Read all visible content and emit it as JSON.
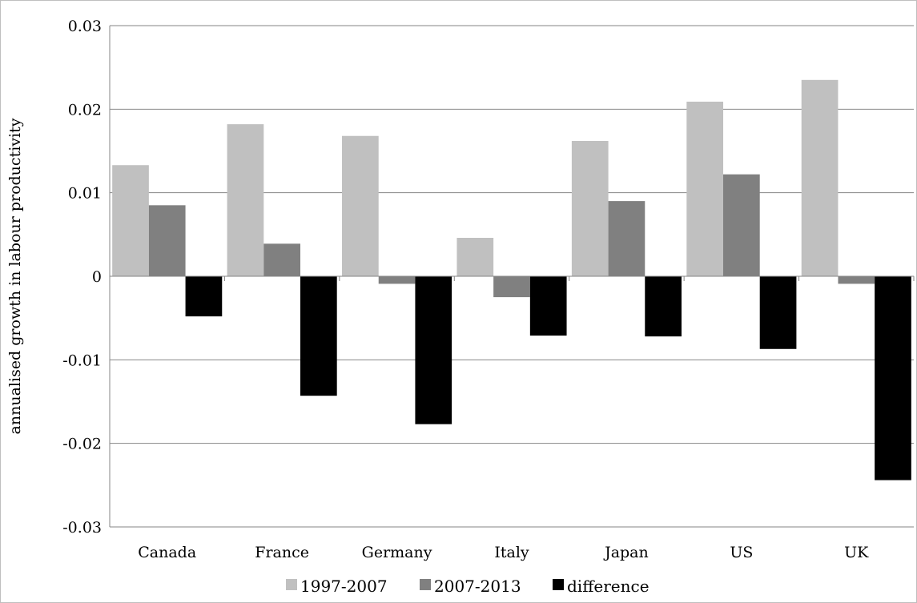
{
  "chart_data": {
    "type": "bar",
    "title": "",
    "xlabel": "",
    "ylabel": "annualised growth in labour productivity",
    "categories": [
      "Canada",
      "France",
      "Germany",
      "Italy",
      "Japan",
      "US",
      "UK"
    ],
    "series": [
      {
        "name": "1997-2007",
        "color": "#c0c0c0",
        "values": [
          0.0133,
          0.0182,
          0.0168,
          0.0046,
          0.0162,
          0.0209,
          0.0235
        ]
      },
      {
        "name": "2007-2013",
        "color": "#808080",
        "values": [
          0.0085,
          0.0039,
          -0.0009,
          -0.0025,
          0.009,
          0.0122,
          -0.0009
        ]
      },
      {
        "name": "difference",
        "color": "#000000",
        "values": [
          -0.0048,
          -0.0143,
          -0.0177,
          -0.0071,
          -0.0072,
          -0.0087,
          -0.0244
        ]
      }
    ],
    "ylim": [
      -0.03,
      0.03
    ],
    "yticks": [
      -0.03,
      -0.02,
      -0.01,
      0,
      0.01,
      0.02,
      0.03
    ],
    "ytick_labels": [
      "-0.03",
      "-0.02",
      "-0.01",
      "0",
      "0.01",
      "0.02",
      "0.03"
    ],
    "grid": true,
    "legend_position": "bottom"
  }
}
